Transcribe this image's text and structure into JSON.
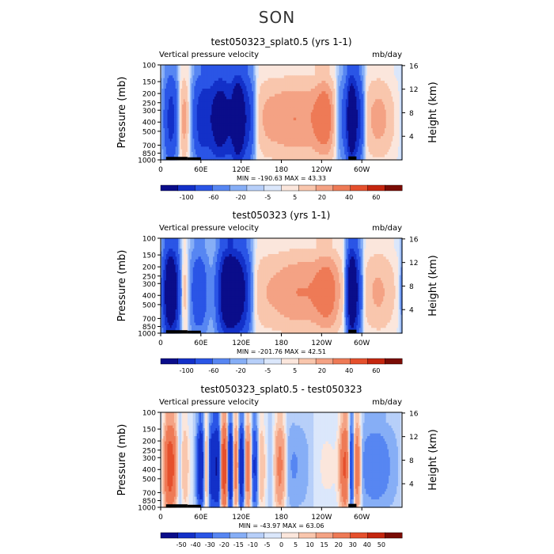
{
  "season_title": "SON",
  "colors": {
    "neg": [
      "#0a0d8a",
      "#1330c8",
      "#2a55e6",
      "#5786f2",
      "#86aef6",
      "#b7cff9",
      "#dbe7fb"
    ],
    "pos": [
      "#fbe6dc",
      "#f9c6ad",
      "#f4a284",
      "#ee7a56",
      "#e5502d",
      "#c4260f",
      "#7a0c05"
    ],
    "topo": "#000000"
  },
  "chart_data": [
    {
      "type": "heatmap",
      "title": "test050323_splat0.5 (yrs 1-1)",
      "left_label": "Vertical pressure velocity",
      "right_label": "mb/day",
      "ylabel": "Pressure (mb)",
      "ylabel_right": "Height (km)",
      "x_ticks": [
        "0",
        "60E",
        "120E",
        "180",
        "120W",
        "60W"
      ],
      "x_tick_values": [
        0,
        60,
        120,
        180,
        240,
        300
      ],
      "xlim": [
        0,
        360
      ],
      "y_ticks": [
        "100",
        "150",
        "200",
        "250",
        "300",
        "400",
        "500",
        "700",
        "850",
        "1000"
      ],
      "y_tick_values": [
        100,
        150,
        200,
        250,
        300,
        400,
        500,
        700,
        850,
        1000
      ],
      "ylim": [
        100,
        1000
      ],
      "height_ticks": [
        "16",
        "12",
        "8",
        "4"
      ],
      "height_tick_values": [
        16,
        12,
        8,
        4
      ],
      "stats": "MIN = -190.63   MAX =  43.33",
      "colorbar_labels": [
        "-100",
        "-60",
        "-20",
        "-5",
        "5",
        "20",
        "40",
        "60"
      ],
      "features": [
        {
          "center": 14,
          "width": 7,
          "amplitude": -40
        },
        {
          "center": 20,
          "width": 8,
          "amplitude": -35
        },
        {
          "center": 32,
          "width": 9,
          "amplitude": 30
        },
        {
          "center": 62,
          "width": 10,
          "amplitude": -70
        },
        {
          "center": 85,
          "width": 9,
          "amplitude": -70
        },
        {
          "center": 100,
          "width": 14,
          "amplitude": -80
        },
        {
          "center": 116,
          "width": 6,
          "amplitude": -120
        },
        {
          "center": 130,
          "width": 7,
          "amplitude": -60
        },
        {
          "center": 155,
          "width": 14,
          "amplitude": 5
        },
        {
          "center": 200,
          "width": 40,
          "amplitude": 25
        },
        {
          "center": 246,
          "width": 12,
          "amplitude": 22
        },
        {
          "center": 272,
          "width": 8,
          "amplitude": -30
        },
        {
          "center": 285,
          "width": 5,
          "amplitude": -150
        },
        {
          "center": 296,
          "width": 5,
          "amplitude": -60
        },
        {
          "center": 325,
          "width": 18,
          "amplitude": 20
        }
      ]
    },
    {
      "type": "heatmap",
      "title": "test050323 (yrs 1-1)",
      "left_label": "Vertical pressure velocity",
      "right_label": "mb/day",
      "ylabel": "Pressure (mb)",
      "ylabel_right": "Height (km)",
      "x_ticks": [
        "0",
        "60E",
        "120E",
        "180",
        "120W",
        "60W"
      ],
      "x_tick_values": [
        0,
        60,
        120,
        180,
        240,
        300
      ],
      "xlim": [
        0,
        360
      ],
      "y_ticks": [
        "100",
        "150",
        "200",
        "250",
        "300",
        "400",
        "500",
        "700",
        "850",
        "1000"
      ],
      "y_tick_values": [
        100,
        150,
        200,
        250,
        300,
        400,
        500,
        700,
        850,
        1000
      ],
      "ylim": [
        100,
        1000
      ],
      "height_ticks": [
        "16",
        "12",
        "8",
        "4"
      ],
      "height_tick_values": [
        16,
        12,
        8,
        4
      ],
      "stats": "MIN = -201.76   MAX =  42.51",
      "colorbar_labels": [
        "-100",
        "-60",
        "-20",
        "-5",
        "5",
        "20",
        "40",
        "60"
      ],
      "features": [
        {
          "center": 14,
          "width": 7,
          "amplitude": -150
        },
        {
          "center": 24,
          "width": 6,
          "amplitude": -40
        },
        {
          "center": 34,
          "width": 7,
          "amplitude": 25
        },
        {
          "center": 58,
          "width": 12,
          "amplitude": -40
        },
        {
          "center": 75,
          "width": 8,
          "amplitude": 10
        },
        {
          "center": 100,
          "width": 10,
          "amplitude": -150
        },
        {
          "center": 112,
          "width": 8,
          "amplitude": -60
        },
        {
          "center": 124,
          "width": 8,
          "amplitude": -70
        },
        {
          "center": 150,
          "width": 14,
          "amplitude": 5
        },
        {
          "center": 205,
          "width": 40,
          "amplitude": 25
        },
        {
          "center": 250,
          "width": 14,
          "amplitude": 20
        },
        {
          "center": 285,
          "width": 5,
          "amplitude": -160
        },
        {
          "center": 294,
          "width": 5,
          "amplitude": -50
        },
        {
          "center": 325,
          "width": 20,
          "amplitude": 18
        }
      ]
    },
    {
      "type": "heatmap",
      "title": "test050323_splat0.5 - test050323",
      "left_label": "Vertical pressure velocity",
      "right_label": "mb/day",
      "ylabel": "Pressure (mb)",
      "ylabel_right": "Height (km)",
      "x_ticks": [
        "0",
        "60E",
        "120E",
        "180",
        "120W",
        "60W"
      ],
      "x_tick_values": [
        0,
        60,
        120,
        180,
        240,
        300
      ],
      "xlim": [
        0,
        360
      ],
      "y_ticks": [
        "100",
        "150",
        "200",
        "250",
        "300",
        "400",
        "500",
        "700",
        "850",
        "1000"
      ],
      "y_tick_values": [
        100,
        150,
        200,
        250,
        300,
        400,
        500,
        700,
        850,
        1000
      ],
      "ylim": [
        100,
        1000
      ],
      "height_ticks": [
        "16",
        "12",
        "8",
        "4"
      ],
      "height_tick_values": [
        16,
        12,
        8,
        4
      ],
      "stats": "MIN = -43.97   MAX =  63.06",
      "colorbar_labels": [
        "-50",
        "-40",
        "-30",
        "-20",
        "-15",
        "-10",
        "-5",
        "0",
        "5",
        "10",
        "15",
        "20",
        "30",
        "40",
        "50"
      ],
      "features": [
        {
          "center": 12,
          "width": 5,
          "amplitude": 28
        },
        {
          "center": 20,
          "width": 5,
          "amplitude": 18
        },
        {
          "center": 28,
          "width": 5,
          "amplitude": -10
        },
        {
          "center": 34,
          "width": 5,
          "amplitude": 10
        },
        {
          "center": 60,
          "width": 4,
          "amplitude": -25
        },
        {
          "center": 68,
          "width": 4,
          "amplitude": 12
        },
        {
          "center": 76,
          "width": 4,
          "amplitude": -20
        },
        {
          "center": 85,
          "width": 4,
          "amplitude": -25
        },
        {
          "center": 95,
          "width": 4,
          "amplitude": 40
        },
        {
          "center": 104,
          "width": 4,
          "amplitude": -30
        },
        {
          "center": 112,
          "width": 4,
          "amplitude": 25
        },
        {
          "center": 120,
          "width": 4,
          "amplitude": -25
        },
        {
          "center": 130,
          "width": 4,
          "amplitude": 20
        },
        {
          "center": 140,
          "width": 4,
          "amplitude": -15
        },
        {
          "center": 150,
          "width": 5,
          "amplitude": 8
        },
        {
          "center": 178,
          "width": 6,
          "amplitude": 18
        },
        {
          "center": 200,
          "width": 30,
          "amplitude": -4
        },
        {
          "center": 240,
          "width": 20,
          "amplitude": 3
        },
        {
          "center": 275,
          "width": 5,
          "amplitude": 28
        },
        {
          "center": 285,
          "width": 4,
          "amplitude": -20
        },
        {
          "center": 292,
          "width": 4,
          "amplitude": 25
        },
        {
          "center": 320,
          "width": 20,
          "amplitude": -6
        }
      ]
    }
  ]
}
